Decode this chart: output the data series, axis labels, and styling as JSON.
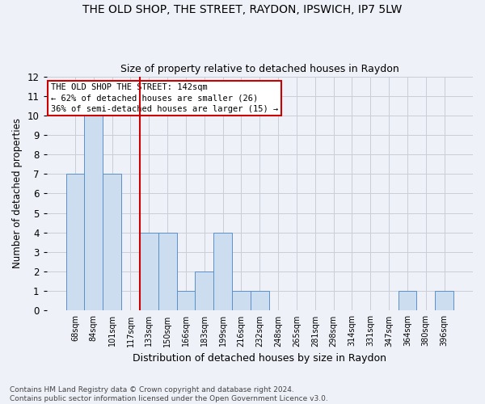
{
  "title": "THE OLD SHOP, THE STREET, RAYDON, IPSWICH, IP7 5LW",
  "subtitle": "Size of property relative to detached houses in Raydon",
  "xlabel": "Distribution of detached houses by size in Raydon",
  "ylabel": "Number of detached properties",
  "categories": [
    "68sqm",
    "84sqm",
    "101sqm",
    "117sqm",
    "133sqm",
    "150sqm",
    "166sqm",
    "183sqm",
    "199sqm",
    "216sqm",
    "232sqm",
    "248sqm",
    "265sqm",
    "281sqm",
    "298sqm",
    "314sqm",
    "331sqm",
    "347sqm",
    "364sqm",
    "380sqm",
    "396sqm"
  ],
  "values": [
    7,
    10,
    7,
    0,
    4,
    4,
    1,
    2,
    4,
    1,
    1,
    0,
    0,
    0,
    0,
    0,
    0,
    0,
    1,
    0,
    1
  ],
  "bar_color": "#ccddf0",
  "bar_edge_color": "#5b8fc9",
  "ref_line_index": 3.5,
  "ylim": [
    0,
    12
  ],
  "yticks": [
    0,
    1,
    2,
    3,
    4,
    5,
    6,
    7,
    8,
    9,
    10,
    11,
    12
  ],
  "grid_color": "#c8cdd8",
  "background_color": "#eef1f8",
  "annotation_text": "THE OLD SHOP THE STREET: 142sqm\n← 62% of detached houses are smaller (26)\n36% of semi-detached houses are larger (15) →",
  "annotation_box_color": "#ffffff",
  "annotation_box_edge": "#cc0000",
  "footer": "Contains HM Land Registry data © Crown copyright and database right 2024.\nContains public sector information licensed under the Open Government Licence v3.0."
}
